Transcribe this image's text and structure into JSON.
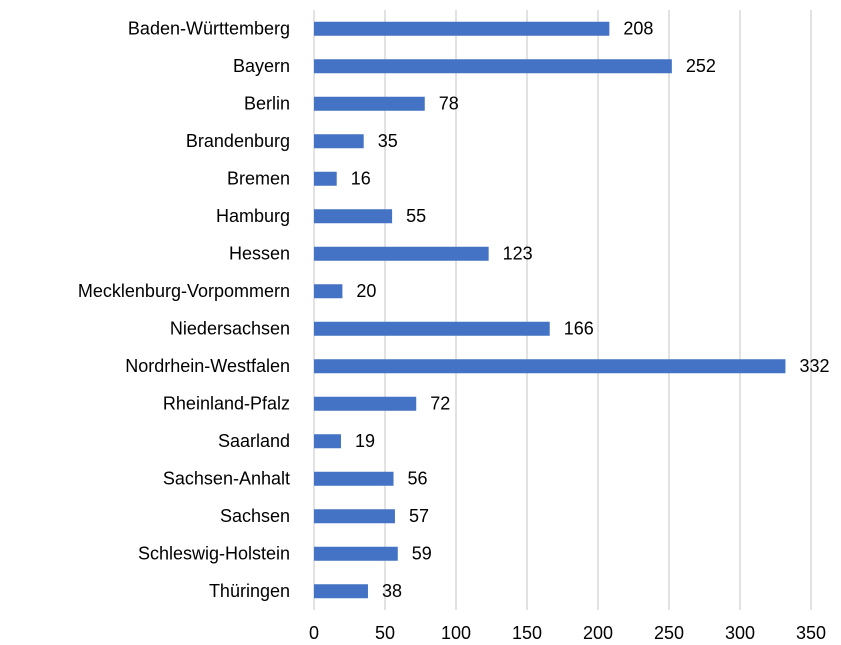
{
  "chart_data": {
    "type": "bar",
    "categories": [
      "Baden-Württemberg",
      "Bayern",
      "Berlin",
      "Brandenburg",
      "Bremen",
      "Hamburg",
      "Hessen",
      "Mecklenburg-Vorpommern",
      "Niedersachsen",
      "Nordrhein-Westfalen",
      "Rheinland-Pfalz",
      "Saarland",
      "Sachsen-Anhalt",
      "Sachsen",
      "Schleswig-Holstein",
      "Thüringen"
    ],
    "values": [
      208,
      252,
      78,
      35,
      16,
      55,
      123,
      20,
      166,
      332,
      72,
      19,
      56,
      57,
      59,
      38
    ],
    "color": "#4472c4",
    "xlim": [
      0,
      350
    ],
    "xticks": [
      0,
      50,
      100,
      150,
      200,
      250,
      300,
      350
    ],
    "grid": true
  }
}
